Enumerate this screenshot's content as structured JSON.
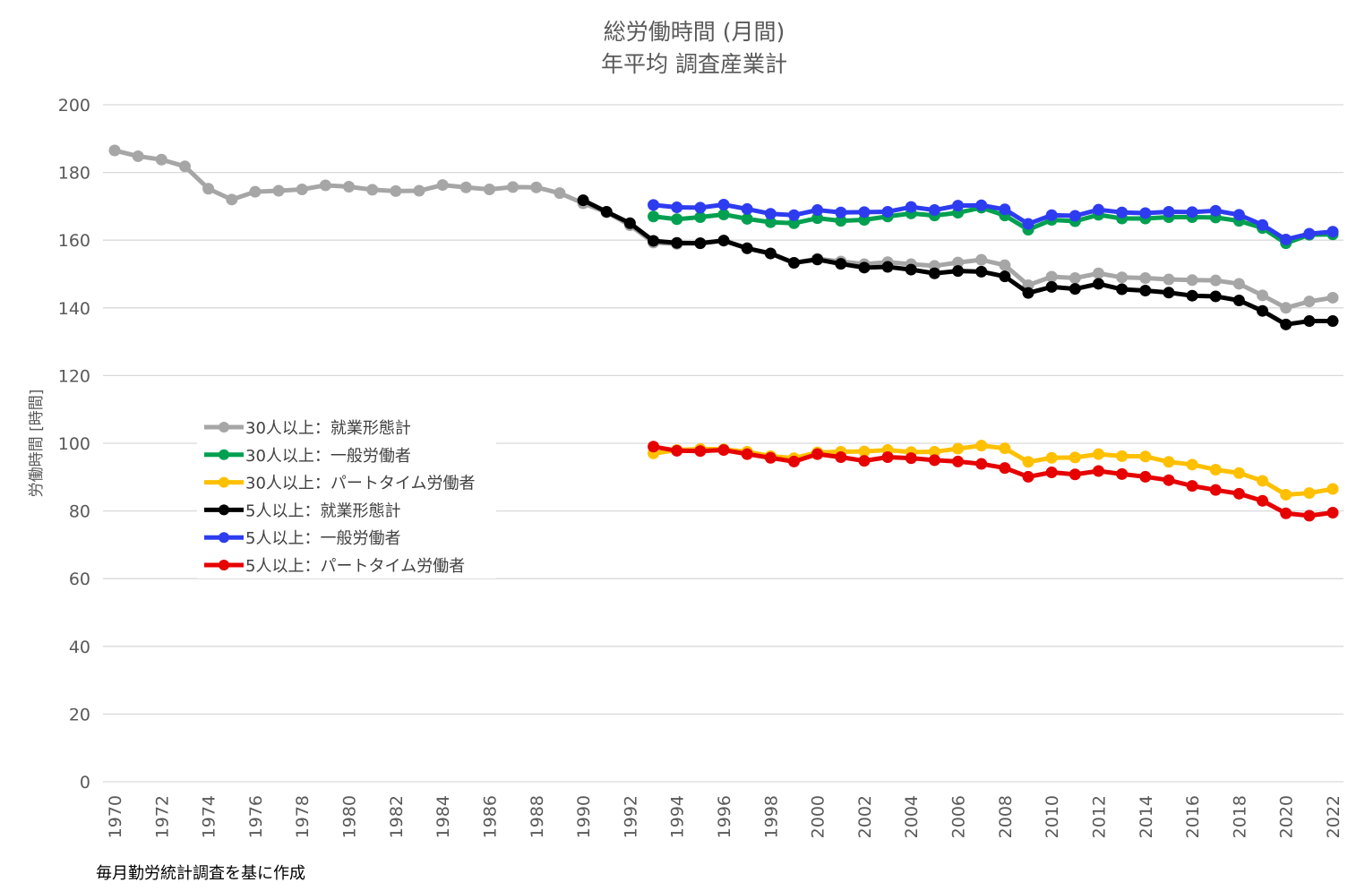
{
  "chart_data": {
    "type": "line",
    "title": "総労働時間 (月間)",
    "subtitle": "年平均 調査産業計",
    "ylabel": "労働時間 [時間]",
    "xlabel": "",
    "ylim": [
      0,
      200
    ],
    "yticks": [
      0,
      20,
      40,
      60,
      80,
      100,
      120,
      140,
      160,
      180,
      200
    ],
    "xlim": [
      1970,
      2022
    ],
    "xticks": [
      1970,
      1972,
      1974,
      1976,
      1978,
      1980,
      1982,
      1984,
      1986,
      1988,
      1990,
      1992,
      1994,
      1996,
      1998,
      2000,
      2002,
      2004,
      2006,
      2008,
      2010,
      2012,
      2014,
      2016,
      2018,
      2020,
      2022
    ],
    "grid": true,
    "legend_position": "middle-left",
    "footnote": "毎月勤労統計調査を基に作成",
    "series": [
      {
        "name": "30人以上：就業形態計",
        "color": "#a6a6a6",
        "x_start": 1970,
        "values": [
          186.5,
          184.8,
          183.8,
          181.8,
          175.2,
          172.0,
          174.3,
          174.6,
          175.0,
          176.2,
          175.8,
          174.9,
          174.5,
          174.6,
          176.3,
          175.6,
          175.0,
          175.7,
          175.6,
          173.9,
          170.9,
          168.2,
          164.4,
          159.3,
          158.9,
          159.1,
          159.8,
          157.6,
          156.0,
          153.3,
          154.5,
          153.7,
          152.9,
          153.5,
          152.9,
          152.4,
          153.4,
          154.2,
          152.6,
          146.7,
          149.2,
          148.8,
          150.2,
          149.0,
          148.8,
          148.4,
          148.2,
          148.1,
          147.1,
          143.7,
          140.0,
          141.9,
          143.0
        ]
      },
      {
        "name": "30人以上：一般労働者",
        "color": "#00a050",
        "x_start": 1993,
        "values": [
          167.0,
          166.2,
          166.8,
          167.6,
          166.3,
          165.3,
          165.0,
          166.5,
          165.7,
          166.0,
          167.0,
          167.9,
          167.3,
          168.1,
          169.6,
          167.3,
          163.1,
          166.0,
          165.6,
          167.5,
          166.4,
          166.4,
          166.8,
          166.8,
          166.7,
          165.7,
          163.6,
          159.1,
          161.6,
          161.7
        ]
      },
      {
        "name": "30人以上：パートタイム労働者",
        "color": "#ffc000",
        "x_start": 1993,
        "values": [
          97.0,
          98.0,
          98.3,
          98.2,
          97.5,
          96.2,
          95.6,
          97.3,
          97.5,
          97.6,
          98.0,
          97.4,
          97.5,
          98.4,
          99.3,
          98.5,
          94.5,
          95.7,
          95.8,
          96.8,
          96.2,
          96.1,
          94.5,
          93.7,
          92.2,
          91.2,
          88.9,
          84.8,
          85.3,
          86.5
        ]
      },
      {
        "name": "5人以上：就業形態計",
        "color": "#000000",
        "x_start": 1990,
        "values": [
          171.8,
          168.4,
          165.0,
          159.8,
          159.2,
          159.1,
          159.9,
          157.6,
          156.1,
          153.3,
          154.3,
          153.0,
          151.9,
          152.1,
          151.3,
          150.2,
          150.9,
          150.7,
          149.3,
          144.4,
          146.2,
          145.6,
          147.1,
          145.5,
          145.1,
          144.5,
          143.6,
          143.4,
          142.2,
          139.1,
          135.1,
          136.1,
          136.1
        ]
      },
      {
        "name": "5人以上：一般労働者",
        "color": "#2e3cf0",
        "x_start": 1993,
        "values": [
          170.4,
          169.7,
          169.6,
          170.5,
          169.2,
          167.8,
          167.4,
          168.9,
          168.2,
          168.3,
          168.4,
          169.8,
          168.9,
          170.2,
          170.3,
          169.1,
          164.8,
          167.4,
          167.2,
          169.0,
          168.2,
          168.0,
          168.4,
          168.3,
          168.7,
          167.5,
          164.5,
          160.2,
          161.9,
          162.5
        ]
      },
      {
        "name": "5人以上：パートタイム労働者",
        "color": "#e60000",
        "x_start": 1993,
        "values": [
          99.0,
          97.8,
          97.7,
          98.0,
          96.8,
          95.7,
          94.6,
          96.8,
          95.9,
          94.8,
          95.9,
          95.6,
          95.0,
          94.6,
          93.9,
          92.7,
          90.1,
          91.4,
          90.8,
          91.8,
          90.9,
          90.1,
          89.1,
          87.4,
          86.2,
          85.1,
          83.0,
          79.3,
          78.6,
          79.5
        ]
      }
    ]
  }
}
